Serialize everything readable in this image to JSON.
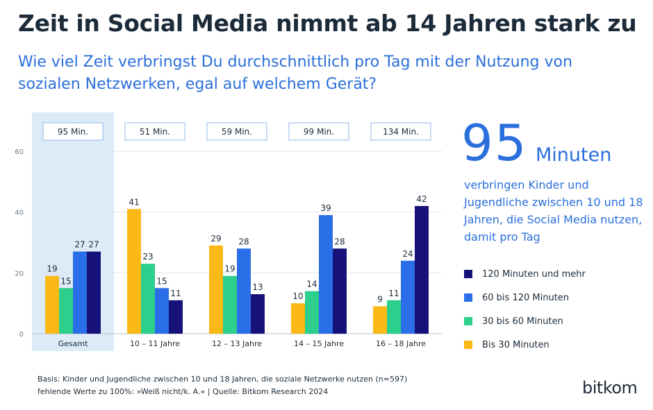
{
  "header": {
    "title": "Zeit in Social Media nimmt ab 14 Jahren stark zu",
    "subtitle": "Wie viel Zeit verbringst Du durchschnittlich pro Tag mit der Nutzung von sozialen Netzwerken, egal auf welchem Gerät?"
  },
  "callout": {
    "number": "95",
    "unit": "Minuten",
    "text": "verbringen Kinder und Jugendliche zwischen 10 und 18 Jahren, die Social Media nutzen, damit pro Tag"
  },
  "footnote": {
    "line1": "Basis: Kinder und Jugendliche zwischen 10 und 18 Jahren, die soziale Netzwerke nutzen (n=597)",
    "line2": "fehlende Werte zu 100%: »Weiß nicht/k. A.« | Quelle: Bitkom Research 2024"
  },
  "logo": "bitkom",
  "colors": {
    "bis_30": "#fbb916",
    "30_60": "#2ccf8b",
    "60_120": "#2a6fe8",
    "120_plus": "#16127a",
    "highlight": "#ddeaf8",
    "accent_text": "#2a6fdb"
  },
  "chart_data": {
    "type": "bar",
    "categories": [
      "Gesamt",
      "10 – 11 Jahre",
      "12 – 13 Jahre",
      "14 – 15 Jahre",
      "16 – 18 Jahre"
    ],
    "averages": [
      "95 Min.",
      "51 Min.",
      "59 Min.",
      "99 Min.",
      "134 Min."
    ],
    "highlighted_category": "Gesamt",
    "ylim": [
      0,
      60
    ],
    "yticks": [
      0,
      20,
      40,
      60
    ],
    "grid": true,
    "legend_position": "right",
    "series": [
      {
        "name": "Bis 30 Minuten",
        "color": "#fbb916",
        "values": [
          19,
          41,
          29,
          10,
          9
        ]
      },
      {
        "name": "30 bis 60 Minuten",
        "color": "#2ccf8b",
        "values": [
          15,
          23,
          19,
          14,
          11
        ]
      },
      {
        "name": "60 bis 120 Minuten",
        "color": "#2a6fe8",
        "values": [
          27,
          15,
          28,
          39,
          24
        ]
      },
      {
        "name": "120 Minuten und mehr",
        "color": "#16127a",
        "values": [
          27,
          11,
          13,
          28,
          42
        ]
      }
    ],
    "legend_order": [
      "120 Minuten und mehr",
      "60 bis 120 Minuten",
      "30 bis 60 Minuten",
      "Bis 30 Minuten"
    ]
  }
}
